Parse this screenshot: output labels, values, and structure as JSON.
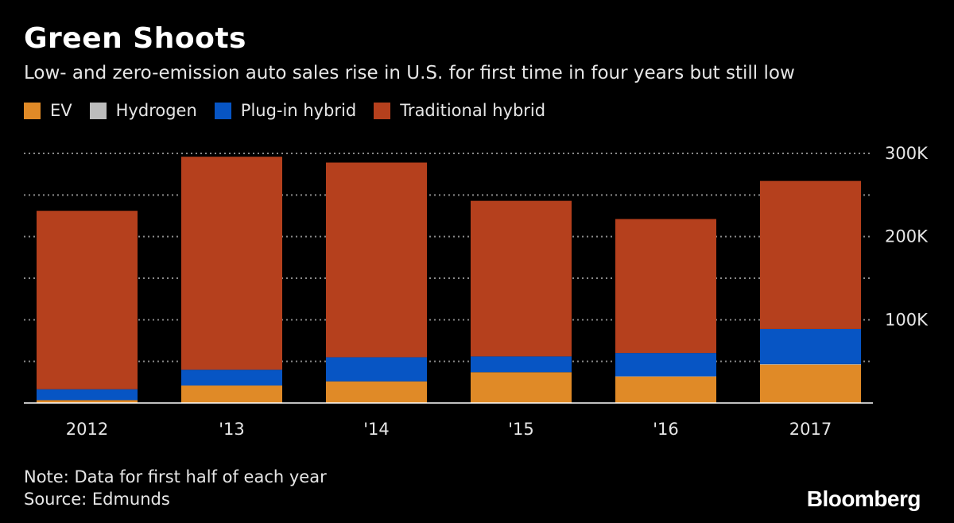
{
  "title": "Green Shoots",
  "subtitle": "Low- and zero-emission auto sales rise in U.S. for first time in four years but still low",
  "note": "Note: Data for first half of each year",
  "source": "Source: Edmunds",
  "brand": "Bloomberg",
  "colors": {
    "background": "#000000",
    "EV": "#e08a27",
    "Hydrogen": "#bcbcbc",
    "Plug-in hybrid": "#0755c4",
    "Traditional hybrid": "#b5401d",
    "grid": "#8a8a8a",
    "axis_text": "#e6e6e6"
  },
  "chart_data": {
    "type": "bar",
    "stacked": true,
    "categories": [
      "2012",
      "'13",
      "'14",
      "'15",
      "'16",
      "2017"
    ],
    "series": [
      {
        "name": "EV",
        "values": [
          3500,
          21000,
          26000,
          37000,
          32000,
          46000
        ]
      },
      {
        "name": "Hydrogen",
        "values": [
          0,
          0,
          0,
          0,
          100,
          900
        ]
      },
      {
        "name": "Plug-in hybrid",
        "values": [
          13000,
          19000,
          29000,
          19000,
          28000,
          42000
        ]
      },
      {
        "name": "Traditional hybrid",
        "values": [
          214500,
          256000,
          234000,
          187000,
          161000,
          178000
        ]
      }
    ],
    "ylim": [
      0,
      300000
    ],
    "yticks": [
      0,
      100000,
      200000,
      300000
    ],
    "ytick_labels": [
      "",
      "100K",
      "200K",
      "300K"
    ],
    "grid_values": [
      50000,
      100000,
      150000,
      200000,
      250000,
      300000
    ],
    "grid": true,
    "y_axis_position": "right",
    "legend_position": "top-left",
    "xlabel": "",
    "ylabel": ""
  }
}
